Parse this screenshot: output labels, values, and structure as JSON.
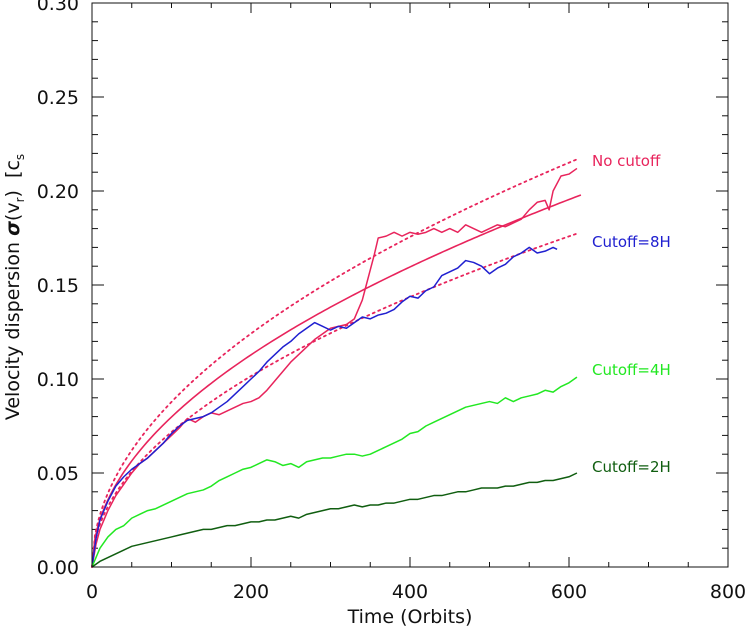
{
  "chart_data": {
    "type": "line",
    "xlabel": "Time (Orbits)",
    "ylabel_parts": {
      "prefix": "Velocity dispersion ",
      "sigma": "σ",
      "open": "(v",
      "sub_r": "r",
      "close": ")",
      "unit_open": "[c",
      "sub_s": "s"
    },
    "xlim": [
      0,
      800
    ],
    "ylim": [
      0,
      0.3
    ],
    "xticks": [
      0,
      200,
      400,
      600,
      800
    ],
    "yticks": [
      0.0,
      0.05,
      0.1,
      0.15,
      0.2,
      0.25,
      0.3
    ],
    "xtick_labels": [
      "0",
      "200",
      "400",
      "600",
      "800"
    ],
    "ytick_labels": [
      "0.00",
      "0.05",
      "0.10",
      "0.15",
      "0.20",
      "0.25",
      "0.30"
    ],
    "grid": false,
    "legend_placement": "inline-right",
    "fits": [
      {
        "color": "#e8245c",
        "style": "solid",
        "a": 0.00798,
        "x_max": 615
      },
      {
        "color": "#e8245c",
        "style": "dotted",
        "a": 0.00878,
        "x_max": 612
      },
      {
        "color": "#e8245c",
        "style": "dotted",
        "a": 0.00718,
        "x_max": 612
      }
    ],
    "series": [
      {
        "label": "No cutoff",
        "color": "#e8245c",
        "x": [
          0,
          5,
          10,
          20,
          30,
          40,
          50,
          60,
          70,
          80,
          90,
          100,
          110,
          120,
          130,
          140,
          150,
          160,
          170,
          180,
          190,
          200,
          210,
          220,
          230,
          240,
          250,
          260,
          270,
          280,
          290,
          300,
          310,
          320,
          330,
          340,
          345,
          350,
          355,
          360,
          370,
          380,
          390,
          400,
          410,
          420,
          430,
          440,
          450,
          460,
          470,
          480,
          490,
          500,
          510,
          520,
          530,
          540,
          550,
          560,
          570,
          575,
          580,
          590,
          600,
          610
        ],
        "y": [
          0.0,
          0.012,
          0.02,
          0.03,
          0.038,
          0.044,
          0.05,
          0.055,
          0.058,
          0.062,
          0.066,
          0.07,
          0.074,
          0.079,
          0.077,
          0.08,
          0.082,
          0.081,
          0.083,
          0.085,
          0.087,
          0.088,
          0.09,
          0.094,
          0.099,
          0.104,
          0.109,
          0.113,
          0.117,
          0.121,
          0.124,
          0.127,
          0.128,
          0.129,
          0.132,
          0.142,
          0.15,
          0.158,
          0.166,
          0.175,
          0.176,
          0.178,
          0.176,
          0.178,
          0.177,
          0.178,
          0.18,
          0.178,
          0.18,
          0.178,
          0.182,
          0.18,
          0.178,
          0.18,
          0.182,
          0.181,
          0.183,
          0.185,
          0.19,
          0.194,
          0.195,
          0.19,
          0.2,
          0.208,
          0.209,
          0.212
        ]
      },
      {
        "label": "Cutoff=8H",
        "color": "#2020d0",
        "x": [
          0,
          5,
          10,
          20,
          30,
          40,
          50,
          60,
          70,
          80,
          90,
          100,
          110,
          120,
          130,
          140,
          150,
          160,
          170,
          180,
          190,
          200,
          210,
          220,
          230,
          240,
          250,
          260,
          270,
          280,
          290,
          300,
          310,
          320,
          330,
          340,
          350,
          360,
          370,
          380,
          390,
          400,
          410,
          420,
          430,
          440,
          450,
          460,
          470,
          480,
          490,
          500,
          510,
          520,
          530,
          540,
          550,
          560,
          570,
          580,
          585
        ],
        "y": [
          0.0,
          0.015,
          0.025,
          0.035,
          0.043,
          0.048,
          0.052,
          0.055,
          0.058,
          0.062,
          0.066,
          0.071,
          0.075,
          0.078,
          0.079,
          0.08,
          0.082,
          0.085,
          0.088,
          0.092,
          0.096,
          0.1,
          0.104,
          0.109,
          0.113,
          0.117,
          0.12,
          0.124,
          0.127,
          0.13,
          0.128,
          0.126,
          0.128,
          0.127,
          0.13,
          0.133,
          0.132,
          0.134,
          0.135,
          0.137,
          0.141,
          0.144,
          0.143,
          0.147,
          0.149,
          0.155,
          0.157,
          0.159,
          0.163,
          0.162,
          0.16,
          0.156,
          0.159,
          0.161,
          0.165,
          0.167,
          0.17,
          0.167,
          0.168,
          0.17,
          0.169
        ]
      },
      {
        "label": "Cutoff=4H",
        "color": "#22e822",
        "x": [
          0,
          10,
          20,
          30,
          40,
          50,
          60,
          70,
          80,
          90,
          100,
          110,
          120,
          130,
          140,
          150,
          160,
          170,
          180,
          190,
          200,
          210,
          220,
          230,
          240,
          250,
          260,
          270,
          280,
          290,
          300,
          310,
          320,
          330,
          340,
          350,
          360,
          370,
          380,
          390,
          400,
          410,
          420,
          430,
          440,
          450,
          460,
          470,
          480,
          490,
          500,
          510,
          520,
          530,
          540,
          550,
          560,
          570,
          580,
          590,
          600,
          610
        ],
        "y": [
          0.0,
          0.01,
          0.016,
          0.02,
          0.022,
          0.026,
          0.028,
          0.03,
          0.031,
          0.033,
          0.035,
          0.037,
          0.039,
          0.04,
          0.041,
          0.043,
          0.046,
          0.048,
          0.05,
          0.052,
          0.053,
          0.055,
          0.057,
          0.056,
          0.054,
          0.055,
          0.053,
          0.056,
          0.057,
          0.058,
          0.058,
          0.059,
          0.06,
          0.06,
          0.059,
          0.06,
          0.062,
          0.064,
          0.066,
          0.068,
          0.071,
          0.072,
          0.075,
          0.077,
          0.079,
          0.081,
          0.083,
          0.085,
          0.086,
          0.087,
          0.088,
          0.087,
          0.09,
          0.088,
          0.09,
          0.091,
          0.092,
          0.094,
          0.093,
          0.096,
          0.098,
          0.101
        ]
      },
      {
        "label": "Cutoff=2H",
        "color": "#105e10",
        "x": [
          0,
          10,
          20,
          30,
          40,
          50,
          60,
          70,
          80,
          90,
          100,
          110,
          120,
          130,
          140,
          150,
          160,
          170,
          180,
          190,
          200,
          210,
          220,
          230,
          240,
          250,
          260,
          270,
          280,
          290,
          300,
          310,
          320,
          330,
          340,
          350,
          360,
          370,
          380,
          390,
          400,
          410,
          420,
          430,
          440,
          450,
          460,
          470,
          480,
          490,
          500,
          510,
          520,
          530,
          540,
          550,
          560,
          570,
          580,
          590,
          600,
          610
        ],
        "y": [
          0.0,
          0.003,
          0.005,
          0.007,
          0.009,
          0.011,
          0.012,
          0.013,
          0.014,
          0.015,
          0.016,
          0.017,
          0.018,
          0.019,
          0.02,
          0.02,
          0.021,
          0.022,
          0.022,
          0.023,
          0.024,
          0.024,
          0.025,
          0.025,
          0.026,
          0.027,
          0.026,
          0.028,
          0.029,
          0.03,
          0.031,
          0.031,
          0.032,
          0.033,
          0.032,
          0.033,
          0.033,
          0.034,
          0.034,
          0.035,
          0.036,
          0.036,
          0.037,
          0.038,
          0.038,
          0.039,
          0.04,
          0.04,
          0.041,
          0.042,
          0.042,
          0.042,
          0.043,
          0.043,
          0.044,
          0.045,
          0.045,
          0.046,
          0.046,
          0.047,
          0.048,
          0.05
        ]
      }
    ]
  }
}
